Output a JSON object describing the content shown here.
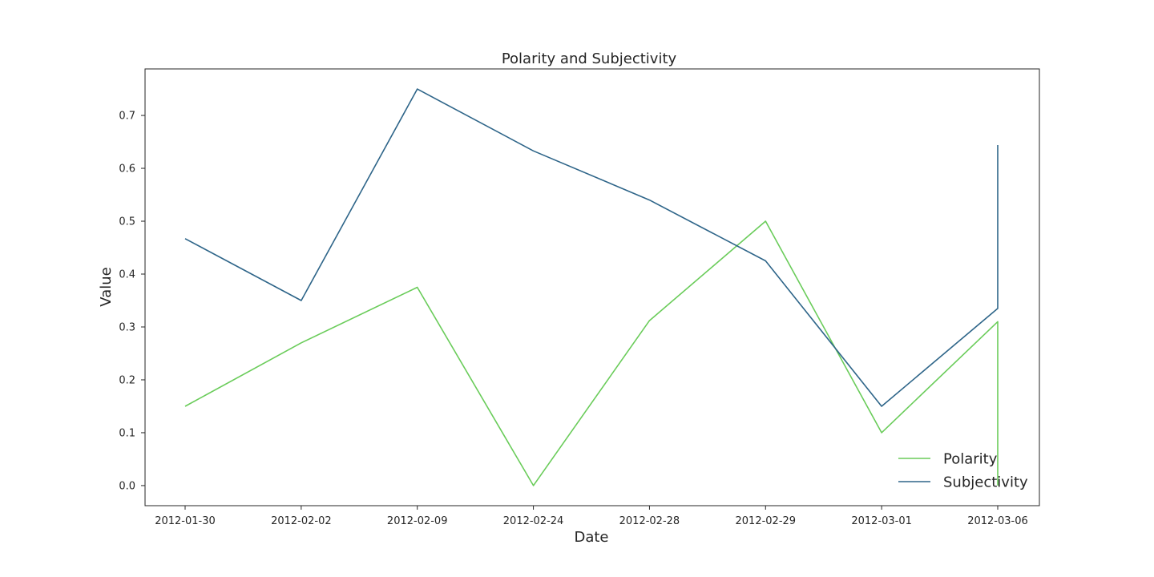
{
  "chart_data": {
    "type": "line",
    "title": "Polarity and Subjectivity",
    "xlabel": "Date",
    "ylabel": "Value",
    "categories": [
      "2012-01-30",
      "2012-02-02",
      "2012-02-09",
      "2012-02-24",
      "2012-02-28",
      "2012-02-29",
      "2012-03-01",
      "2012-03-06"
    ],
    "yticks": [
      "0.0",
      "0.1",
      "0.2",
      "0.3",
      "0.4",
      "0.5",
      "0.6",
      "0.7"
    ],
    "ylim": [
      -0.038,
      0.788
    ],
    "grid": false,
    "legend_position": "bottom-right",
    "series": [
      {
        "name": "Polarity",
        "color": "#6acc5a",
        "points": [
          [
            "2012-01-30",
            0.15
          ],
          [
            "2012-02-02",
            0.27
          ],
          [
            "2012-02-09",
            0.375
          ],
          [
            "2012-02-24",
            0.0
          ],
          [
            "2012-02-28",
            0.312
          ],
          [
            "2012-02-29",
            0.5
          ],
          [
            "2012-03-01",
            0.1
          ],
          [
            "2012-03-06",
            0.31
          ],
          [
            "2012-03-06",
            0.0
          ]
        ]
      },
      {
        "name": "Subjectivity",
        "color": "#2e6589",
        "points": [
          [
            "2012-01-30",
            0.467
          ],
          [
            "2012-02-02",
            0.35
          ],
          [
            "2012-02-09",
            0.75
          ],
          [
            "2012-02-24",
            0.633
          ],
          [
            "2012-02-28",
            0.54
          ],
          [
            "2012-02-29",
            0.425
          ],
          [
            "2012-03-01",
            0.15
          ],
          [
            "2012-03-06",
            0.335
          ],
          [
            "2012-03-06",
            0.644
          ]
        ]
      }
    ]
  }
}
